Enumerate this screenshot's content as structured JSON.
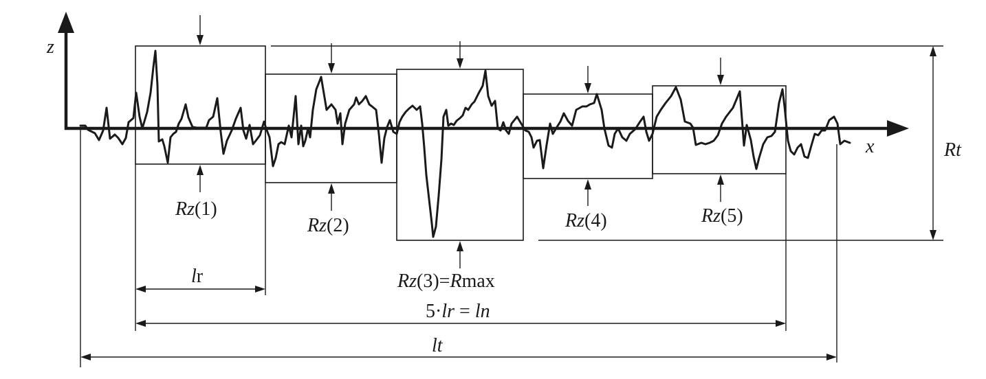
{
  "axes": {
    "z_label": "z",
    "x_label": "x"
  },
  "labels": {
    "rt": "Rt",
    "rz1_sym": "Rz",
    "rz1_arg": "(1)",
    "rz2_sym": "Rz",
    "rz2_arg": "(2)",
    "rz3_sym": "Rz",
    "rz3_arg": "(3)=",
    "rz3_rmax_sym": "R",
    "rz3_rmax_sub": "max",
    "rz4_sym": "Rz",
    "rz4_arg": "(4)",
    "rz5_sym": "Rz",
    "rz5_arg": "(5)",
    "lr_sym": "l",
    "lr_sub": "r",
    "ln_coef": "5·",
    "ln_lr": "lr",
    "ln_eq": " = ",
    "ln_ln": "ln",
    "lt": "lt"
  }
}
